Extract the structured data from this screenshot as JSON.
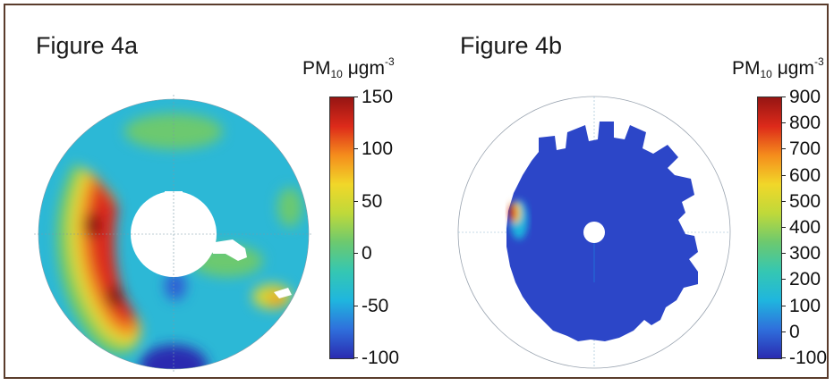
{
  "chart_data": [
    {
      "type": "heatmap",
      "subtype": "polar",
      "title": "Figure 4a",
      "colorbar_label": {
        "main": "PM",
        "sub": "10",
        "unit": " μgm",
        "sup": "-3"
      },
      "colorbar_ticks": [
        "150",
        "100",
        "50",
        "0",
        "-50",
        "-100"
      ],
      "colorbar_range": [
        -100,
        150
      ],
      "colorscale": [
        "#2a2bb0",
        "#2f6fdc",
        "#1fb6de",
        "#35c7b2",
        "#6cc96f",
        "#bfd93a",
        "#f1d729",
        "#f58d1c",
        "#dd2a1a",
        "#961513"
      ]
    },
    {
      "type": "heatmap",
      "subtype": "polar",
      "title": "Figure 4b",
      "colorbar_label": {
        "main": "PM",
        "sub": "10",
        "unit": " μgm",
        "sup": "-3"
      },
      "colorbar_ticks": [
        "900",
        "800",
        "700",
        "600",
        "500",
        "400",
        "300",
        "200",
        "100",
        "0",
        "-100"
      ],
      "colorbar_range": [
        -100,
        900
      ],
      "colorscale": [
        "#2a2bb0",
        "#2f6fdc",
        "#1fb6de",
        "#35c7b2",
        "#6cc96f",
        "#bfd93a",
        "#f1d729",
        "#f58d1c",
        "#dd2a1a",
        "#961513"
      ]
    }
  ]
}
